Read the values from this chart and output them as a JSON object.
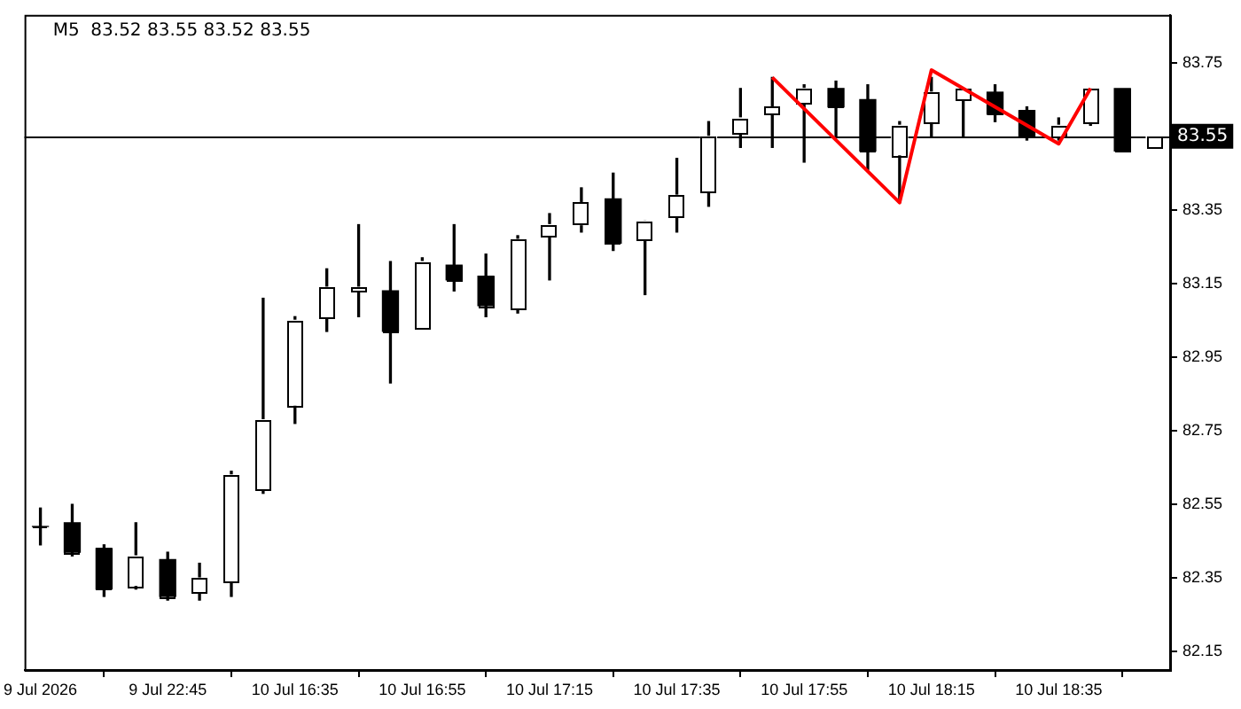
{
  "chart_data": {
    "type": "candlestick",
    "title": "M5  83.52 83.55 83.52 83.55",
    "categories": [
      "9 Jul 2026",
      null,
      null,
      null,
      "9 Jul 22:45",
      null,
      null,
      null,
      "10 Jul 16:35",
      null,
      null,
      null,
      "10 Jul 16:55",
      null,
      null,
      null,
      "10 Jul 17:15",
      null,
      null,
      null,
      "10 Jul 17:35",
      null,
      null,
      null,
      "10 Jul 17:55",
      null,
      null,
      null,
      "10 Jul 18:15",
      null,
      null,
      null,
      "10 Jul 18:35",
      null,
      null,
      null
    ],
    "ohlc": [
      [
        82.49,
        82.54,
        82.44,
        82.49
      ],
      [
        82.5,
        82.55,
        82.41,
        82.42
      ],
      [
        82.43,
        82.44,
        82.3,
        82.32
      ],
      [
        82.33,
        82.5,
        82.32,
        82.41
      ],
      [
        82.4,
        82.42,
        82.29,
        82.3
      ],
      [
        82.31,
        82.39,
        82.29,
        82.35
      ],
      [
        82.34,
        82.64,
        82.3,
        82.63
      ],
      [
        82.59,
        83.11,
        82.58,
        82.78
      ],
      [
        82.82,
        83.06,
        82.77,
        83.05
      ],
      [
        83.06,
        83.19,
        83.02,
        83.14
      ],
      [
        83.13,
        83.31,
        83.06,
        83.14
      ],
      [
        83.13,
        83.21,
        82.88,
        83.02
      ],
      [
        83.03,
        83.22,
        83.03,
        83.21
      ],
      [
        83.2,
        83.31,
        83.13,
        83.16
      ],
      [
        83.17,
        83.23,
        83.06,
        83.09
      ],
      [
        83.08,
        83.28,
        83.07,
        83.27
      ],
      [
        83.28,
        83.34,
        83.16,
        83.31
      ],
      [
        83.31,
        83.41,
        83.29,
        83.37
      ],
      [
        83.38,
        83.45,
        83.24,
        83.26
      ],
      [
        83.27,
        83.32,
        83.12,
        83.32
      ],
      [
        83.33,
        83.49,
        83.29,
        83.39
      ],
      [
        83.4,
        83.59,
        83.36,
        83.55
      ],
      [
        83.56,
        83.68,
        83.52,
        83.6
      ],
      [
        83.61,
        83.71,
        83.52,
        83.63
      ],
      [
        83.64,
        83.69,
        83.48,
        83.68
      ],
      [
        83.68,
        83.7,
        83.55,
        83.63
      ],
      [
        83.65,
        83.69,
        83.46,
        83.51
      ],
      [
        83.5,
        83.59,
        83.37,
        83.58
      ],
      [
        83.59,
        83.71,
        83.55,
        83.67
      ],
      [
        83.65,
        83.68,
        83.55,
        83.68
      ],
      [
        83.67,
        83.69,
        83.59,
        83.61
      ],
      [
        83.62,
        83.63,
        83.54,
        83.55
      ],
      [
        83.55,
        83.6,
        83.54,
        83.58
      ],
      [
        83.59,
        83.68,
        83.58,
        83.68
      ],
      [
        83.68,
        83.68,
        83.51,
        83.51
      ],
      [
        83.52,
        83.55,
        83.52,
        83.55
      ]
    ],
    "colors": [
      "#000000",
      "#000000",
      "#000000",
      "#ffffff",
      "#000000",
      "#ffffff",
      "#ffffff",
      "#ffffff",
      "#ffffff",
      "#ffffff",
      "#ffffff",
      "#000000",
      "#ffffff",
      "#000000",
      "#000000",
      "#ffffff",
      "#ffffff",
      "#ffffff",
      "#000000",
      "#ffffff",
      "#ffffff",
      "#ffffff",
      "#ffffff",
      "#ffffff",
      "#ffffff",
      "#000000",
      "#000000",
      "#ffffff",
      "#ffffff",
      "#ffffff",
      "#000000",
      "#000000",
      "#ffffff",
      "#ffffff",
      "#000000",
      "#ffffff"
    ],
    "series": [
      {
        "type": "line",
        "color": "#ff0000",
        "values": [
          null,
          null,
          null,
          null,
          null,
          null,
          null,
          null,
          null,
          null,
          null,
          null,
          null,
          null,
          null,
          null,
          null,
          null,
          null,
          null,
          null,
          null,
          null,
          83.71,
          null,
          null,
          null,
          83.37,
          83.73,
          null,
          null,
          null,
          83.53,
          83.68,
          null,
          null
        ]
      }
    ],
    "ylim": [
      82.1,
      83.88
    ],
    "yticks": [
      {
        "value": 82.15,
        "label": "82.15"
      },
      {
        "value": 82.35,
        "label": "82.35"
      },
      {
        "value": 82.55,
        "label": "82.55"
      },
      {
        "value": 82.75,
        "label": "82.75"
      },
      {
        "value": 82.95,
        "label": "82.95"
      },
      {
        "value": 83.15,
        "label": "83.15"
      },
      {
        "value": 83.35,
        "label": "83.35"
      },
      {
        "value": 83.75,
        "label": "83.75"
      }
    ],
    "ref_lines": [
      {
        "axis": "y",
        "value": 83.55,
        "label": "83.55",
        "color": "#000000"
      }
    ],
    "grid": false,
    "legend": false
  }
}
